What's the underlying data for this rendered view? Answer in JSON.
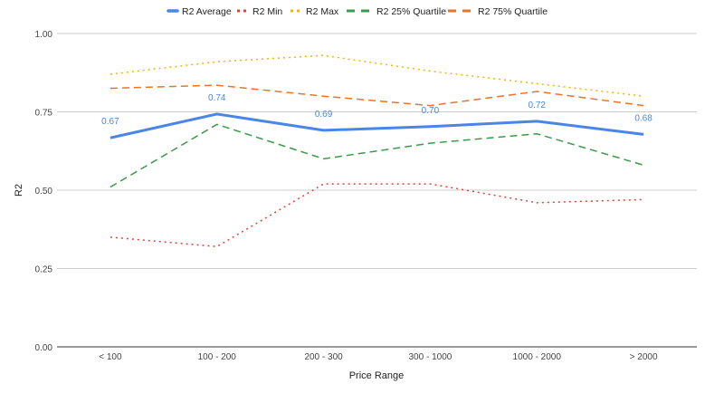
{
  "chart_data": {
    "type": "line",
    "title": "",
    "xlabel": "Price Range",
    "ylabel": "R2",
    "categories": [
      "< 100",
      "100 - 200",
      "200 - 300",
      "300 - 1000",
      "1000 - 2000",
      "> 2000"
    ],
    "ylim": [
      0,
      1
    ],
    "yticks": [
      "0.00",
      "0.25",
      "0.50",
      "0.75",
      "1.00"
    ],
    "grid": true,
    "legend_position": "top",
    "series": [
      {
        "name": "R2 Average",
        "color": "#4a86e8",
        "style": "solid",
        "values": [
          0.667,
          0.743,
          0.691,
          0.703,
          0.72,
          0.678
        ],
        "labels": [
          "0.67",
          "0.74",
          "0.69",
          "0.70",
          "0.72",
          "0.68"
        ]
      },
      {
        "name": "R2 Min",
        "color": "#db4437",
        "style": "dotted",
        "values": [
          0.35,
          0.32,
          0.52,
          0.52,
          0.46,
          0.47
        ]
      },
      {
        "name": "R2 Max",
        "color": "#f4b400",
        "style": "dotted",
        "values": [
          0.87,
          0.91,
          0.93,
          0.88,
          0.84,
          0.8
        ]
      },
      {
        "name": "R2 25% Quartile",
        "color": "#3c9a4a",
        "style": "dashed",
        "values": [
          0.51,
          0.71,
          0.6,
          0.65,
          0.68,
          0.58
        ]
      },
      {
        "name": "R2 75% Quartile",
        "color": "#e8742c",
        "style": "dashed",
        "values": [
          0.825,
          0.835,
          0.8,
          0.77,
          0.815,
          0.77
        ]
      }
    ]
  }
}
